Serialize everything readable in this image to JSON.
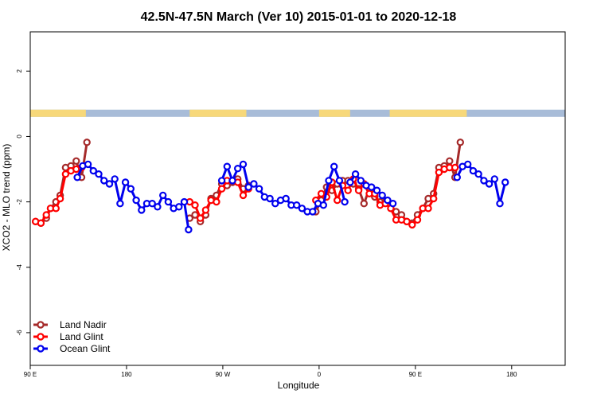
{
  "chart_data": {
    "type": "line",
    "title": "42.5N-47.5N March (Ver 10)   2015-01-01 to 2020-12-18",
    "xlabel": "Longitude",
    "ylabel": "XCO2 - MLO trend (ppm)",
    "xlim": [
      0,
      500
    ],
    "ylim": [
      -7.0,
      3.2
    ],
    "x_ticks": [
      {
        "value": 0,
        "label": "90 E"
      },
      {
        "value": 90,
        "label": "180"
      },
      {
        "value": 180,
        "label": "90 W"
      },
      {
        "value": 270,
        "label": "0"
      },
      {
        "value": 360,
        "label": "90 E"
      },
      {
        "value": 450,
        "label": "180"
      }
    ],
    "y_ticks": [
      {
        "value": 2,
        "label": "2"
      },
      {
        "value": 0,
        "label": "0"
      },
      {
        "value": -2,
        "label": "-2"
      },
      {
        "value": -4,
        "label": "-4"
      },
      {
        "value": -6,
        "label": "-6"
      }
    ],
    "land_ocean_bar": {
      "y_range": [
        0.6,
        0.82
      ],
      "land_color": "#f7d87a",
      "ocean_color": "#a8bcd8",
      "land_segments": [
        [
          0,
          52
        ],
        [
          149,
          202
        ],
        [
          270,
          299
        ],
        [
          336,
          408
        ]
      ]
    },
    "legend": {
      "position": "bottom-left",
      "entries": [
        {
          "name": "Land Nadir",
          "color": "#a52a2a"
        },
        {
          "name": "Land Glint",
          "color": "#ff0000"
        },
        {
          "name": "Ocean Glint",
          "color": "#0000ee"
        }
      ]
    },
    "series": [
      {
        "name": "Land Nadir",
        "color": "#a52a2a",
        "segments": [
          [
            [
              5,
              -2.6
            ],
            [
              10,
              -2.65
            ],
            [
              15,
              -2.5
            ],
            [
              19,
              -2.2
            ],
            [
              24,
              -2.0
            ],
            [
              28,
              -1.8
            ],
            [
              33,
              -0.95
            ],
            [
              38,
              -0.9
            ],
            [
              43,
              -0.75
            ],
            [
              48,
              -1.25
            ],
            [
              53,
              -0.18
            ]
          ],
          [
            [
              149,
              -2.5
            ],
            [
              154,
              -2.4
            ],
            [
              159,
              -2.6
            ],
            [
              164,
              -2.4
            ],
            [
              169,
              -1.9
            ],
            [
              174,
              -1.8
            ],
            [
              179,
              -1.45
            ],
            [
              184,
              -1.5
            ],
            [
              189,
              -1.4
            ],
            [
              194,
              -1.3
            ],
            [
              199,
              -1.6
            ],
            [
              204,
              -1.5
            ]
          ],
          [
            [
              267,
              -2.3
            ],
            [
              272,
              -1.95
            ],
            [
              277,
              -1.55
            ],
            [
              282,
              -1.65
            ],
            [
              287,
              -1.45
            ],
            [
              292,
              -1.35
            ],
            [
              297,
              -1.35
            ],
            [
              302,
              -1.45
            ],
            [
              307,
              -1.6
            ],
            [
              312,
              -2.05
            ],
            [
              317,
              -1.6
            ],
            [
              322,
              -1.85
            ],
            [
              327,
              -2.0
            ],
            [
              332,
              -2.0
            ],
            [
              337,
              -2.1
            ],
            [
              342,
              -2.3
            ],
            [
              347,
              -2.4
            ],
            [
              352,
              -2.6
            ],
            [
              357,
              -2.65
            ],
            [
              362,
              -2.4
            ],
            [
              367,
              -2.2
            ],
            [
              372,
              -1.9
            ],
            [
              377,
              -1.75
            ],
            [
              382,
              -0.95
            ],
            [
              387,
              -0.9
            ],
            [
              392,
              -0.75
            ],
            [
              397,
              -1.25
            ],
            [
              402,
              -0.18
            ]
          ]
        ]
      },
      {
        "name": "Land Glint",
        "color": "#ff0000",
        "segments": [
          [
            [
              5,
              -2.6
            ],
            [
              10,
              -2.65
            ],
            [
              15,
              -2.4
            ],
            [
              19,
              -2.2
            ],
            [
              24,
              -2.2
            ],
            [
              28,
              -1.9
            ],
            [
              33,
              -1.15
            ],
            [
              38,
              -1.05
            ],
            [
              43,
              -1.0
            ],
            [
              48,
              -0.95
            ]
          ],
          [
            [
              149,
              -2.0
            ],
            [
              154,
              -2.1
            ],
            [
              159,
              -2.5
            ],
            [
              164,
              -2.25
            ],
            [
              169,
              -1.95
            ],
            [
              174,
              -2.0
            ],
            [
              179,
              -1.6
            ],
            [
              184,
              -1.35
            ],
            [
              189,
              -1.35
            ],
            [
              194,
              -1.4
            ],
            [
              199,
              -1.8
            ],
            [
              204,
              -1.6
            ]
          ],
          [
            [
              267,
              -1.95
            ],
            [
              272,
              -1.75
            ],
            [
              277,
              -1.85
            ],
            [
              282,
              -1.4
            ],
            [
              287,
              -1.95
            ],
            [
              292,
              -1.5
            ],
            [
              297,
              -1.65
            ],
            [
              302,
              -1.3
            ],
            [
              307,
              -1.65
            ],
            [
              312,
              -1.45
            ],
            [
              317,
              -1.75
            ],
            [
              322,
              -1.75
            ],
            [
              327,
              -2.1
            ],
            [
              332,
              -2.05
            ],
            [
              337,
              -2.2
            ],
            [
              342,
              -2.55
            ],
            [
              347,
              -2.55
            ],
            [
              352,
              -2.6
            ],
            [
              357,
              -2.7
            ],
            [
              362,
              -2.55
            ],
            [
              367,
              -2.2
            ],
            [
              372,
              -2.2
            ],
            [
              377,
              -1.9
            ],
            [
              382,
              -1.1
            ],
            [
              387,
              -1.0
            ],
            [
              392,
              -0.95
            ],
            [
              397,
              -0.95
            ]
          ]
        ]
      },
      {
        "name": "Ocean Glint",
        "color": "#0000ee",
        "segments": [
          [
            [
              44,
              -1.25
            ],
            [
              49,
              -0.9
            ],
            [
              54,
              -0.85
            ],
            [
              59,
              -1.05
            ],
            [
              64,
              -1.15
            ],
            [
              69,
              -1.35
            ],
            [
              74,
              -1.45
            ],
            [
              79,
              -1.3
            ],
            [
              84,
              -2.05
            ],
            [
              89,
              -1.4
            ],
            [
              94,
              -1.6
            ],
            [
              99,
              -1.95
            ],
            [
              104,
              -2.25
            ],
            [
              109,
              -2.05
            ],
            [
              114,
              -2.05
            ],
            [
              119,
              -2.15
            ],
            [
              124,
              -1.8
            ],
            [
              129,
              -2.0
            ],
            [
              134,
              -2.2
            ],
            [
              139,
              -2.15
            ],
            [
              144,
              -2.0
            ],
            [
              148,
              -2.85
            ]
          ],
          [
            [
              179,
              -1.35
            ],
            [
              184,
              -0.92
            ],
            [
              189,
              -1.35
            ],
            [
              194,
              -0.98
            ],
            [
              199,
              -0.85
            ],
            [
              204,
              -1.55
            ],
            [
              209,
              -1.45
            ],
            [
              214,
              -1.6
            ],
            [
              219,
              -1.85
            ],
            [
              224,
              -1.9
            ],
            [
              229,
              -2.05
            ],
            [
              234,
              -1.95
            ],
            [
              239,
              -1.9
            ],
            [
              244,
              -2.1
            ],
            [
              249,
              -2.1
            ],
            [
              254,
              -2.2
            ],
            [
              259,
              -2.3
            ],
            [
              264,
              -2.3
            ],
            [
              269,
              -2.05
            ],
            [
              274,
              -2.1
            ],
            [
              279,
              -1.35
            ],
            [
              284,
              -0.92
            ],
            [
              289,
              -1.35
            ],
            [
              294,
              -2.0
            ]
          ],
          [
            [
              299,
              -1.4
            ],
            [
              304,
              -1.15
            ],
            [
              309,
              -1.35
            ],
            [
              314,
              -1.5
            ],
            [
              319,
              -1.55
            ],
            [
              324,
              -1.65
            ],
            [
              329,
              -1.8
            ],
            [
              334,
              -1.95
            ],
            [
              339,
              -2.05
            ]
          ],
          [
            [
              399,
              -1.25
            ],
            [
              404,
              -0.92
            ],
            [
              409,
              -0.85
            ],
            [
              414,
              -1.05
            ],
            [
              419,
              -1.15
            ],
            [
              424,
              -1.35
            ],
            [
              429,
              -1.45
            ],
            [
              434,
              -1.3
            ],
            [
              439,
              -2.05
            ],
            [
              444,
              -1.4
            ]
          ]
        ]
      }
    ]
  }
}
